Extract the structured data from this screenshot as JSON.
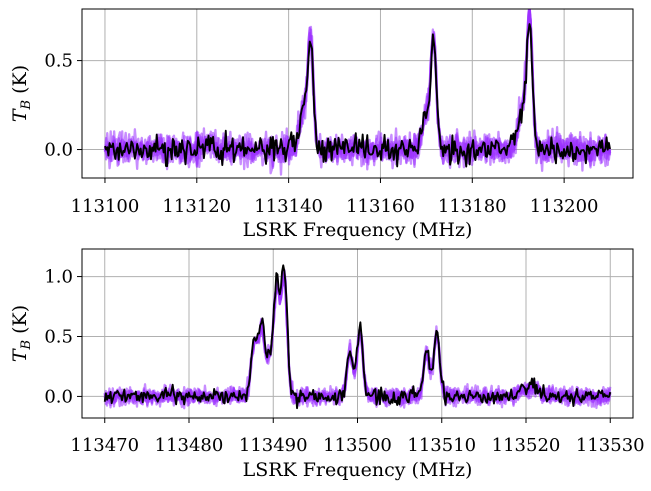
{
  "chart_data": [
    {
      "type": "line",
      "xlabel": "LSRK Frequency (MHz)",
      "ylabel": "T_B (K)",
      "ylabel_parts": {
        "main": "T",
        "sub": "B",
        "rest": " (K)"
      },
      "xlim": [
        113095,
        113215
      ],
      "ylim": [
        -0.16,
        0.79
      ],
      "xticks": [
        113100,
        113120,
        113140,
        113160,
        113180,
        113200
      ],
      "yticks": [
        0.0,
        0.5
      ],
      "ytick_labels": [
        "0.0",
        "0.5"
      ],
      "grid": true,
      "noise_rms": 0.04,
      "x_range": [
        113100,
        113210
      ],
      "peaks": [
        {
          "center": 113144.8,
          "amp": 0.58,
          "width": 0.6
        },
        {
          "center": 113143.2,
          "amp": 0.2,
          "width": 0.9
        },
        {
          "center": 113171.6,
          "amp": 0.57,
          "width": 0.6
        },
        {
          "center": 113170.0,
          "amp": 0.2,
          "width": 0.9
        },
        {
          "center": 113192.5,
          "amp": 0.7,
          "width": 0.6
        },
        {
          "center": 113190.9,
          "amp": 0.22,
          "width": 0.9
        },
        {
          "center": 113122.5,
          "amp": 0.03,
          "width": 1.0
        }
      ],
      "series": [
        {
          "role": "posterior samples",
          "color": "#9b30ff"
        },
        {
          "role": "data",
          "color": "#000000"
        }
      ]
    },
    {
      "type": "line",
      "xlabel": "LSRK Frequency (MHz)",
      "ylabel": "T_B (K)",
      "ylabel_parts": {
        "main": "T",
        "sub": "B",
        "rest": " (K)"
      },
      "xlim": [
        113467.3,
        113532.7
      ],
      "ylim": [
        -0.18,
        1.23
      ],
      "xticks": [
        113470,
        113480,
        113490,
        113500,
        113510,
        113520,
        113530
      ],
      "yticks": [
        0.0,
        0.5,
        1.0
      ],
      "ytick_labels": [
        "0.0",
        "0.5",
        "1.0"
      ],
      "grid": true,
      "noise_rms": 0.035,
      "x_range": [
        113470,
        113530
      ],
      "peaks": [
        {
          "center": 113487.7,
          "amp": 0.45,
          "width": 0.35
        },
        {
          "center": 113488.6,
          "amp": 0.58,
          "width": 0.35
        },
        {
          "center": 113490.4,
          "amp": 0.92,
          "width": 0.35
        },
        {
          "center": 113491.3,
          "amp": 1.05,
          "width": 0.35
        },
        {
          "center": 113489.5,
          "amp": 0.3,
          "width": 0.4
        },
        {
          "center": 113499.1,
          "amp": 0.4,
          "width": 0.35
        },
        {
          "center": 113500.3,
          "amp": 0.57,
          "width": 0.35
        },
        {
          "center": 113508.2,
          "amp": 0.4,
          "width": 0.35
        },
        {
          "center": 113509.4,
          "amp": 0.55,
          "width": 0.35
        },
        {
          "center": 113521.0,
          "amp": 0.1,
          "width": 0.5
        },
        {
          "center": 113519.6,
          "amp": 0.06,
          "width": 0.5
        }
      ],
      "series": [
        {
          "role": "posterior samples",
          "color": "#9b30ff"
        },
        {
          "role": "data",
          "color": "#000000"
        }
      ]
    }
  ]
}
